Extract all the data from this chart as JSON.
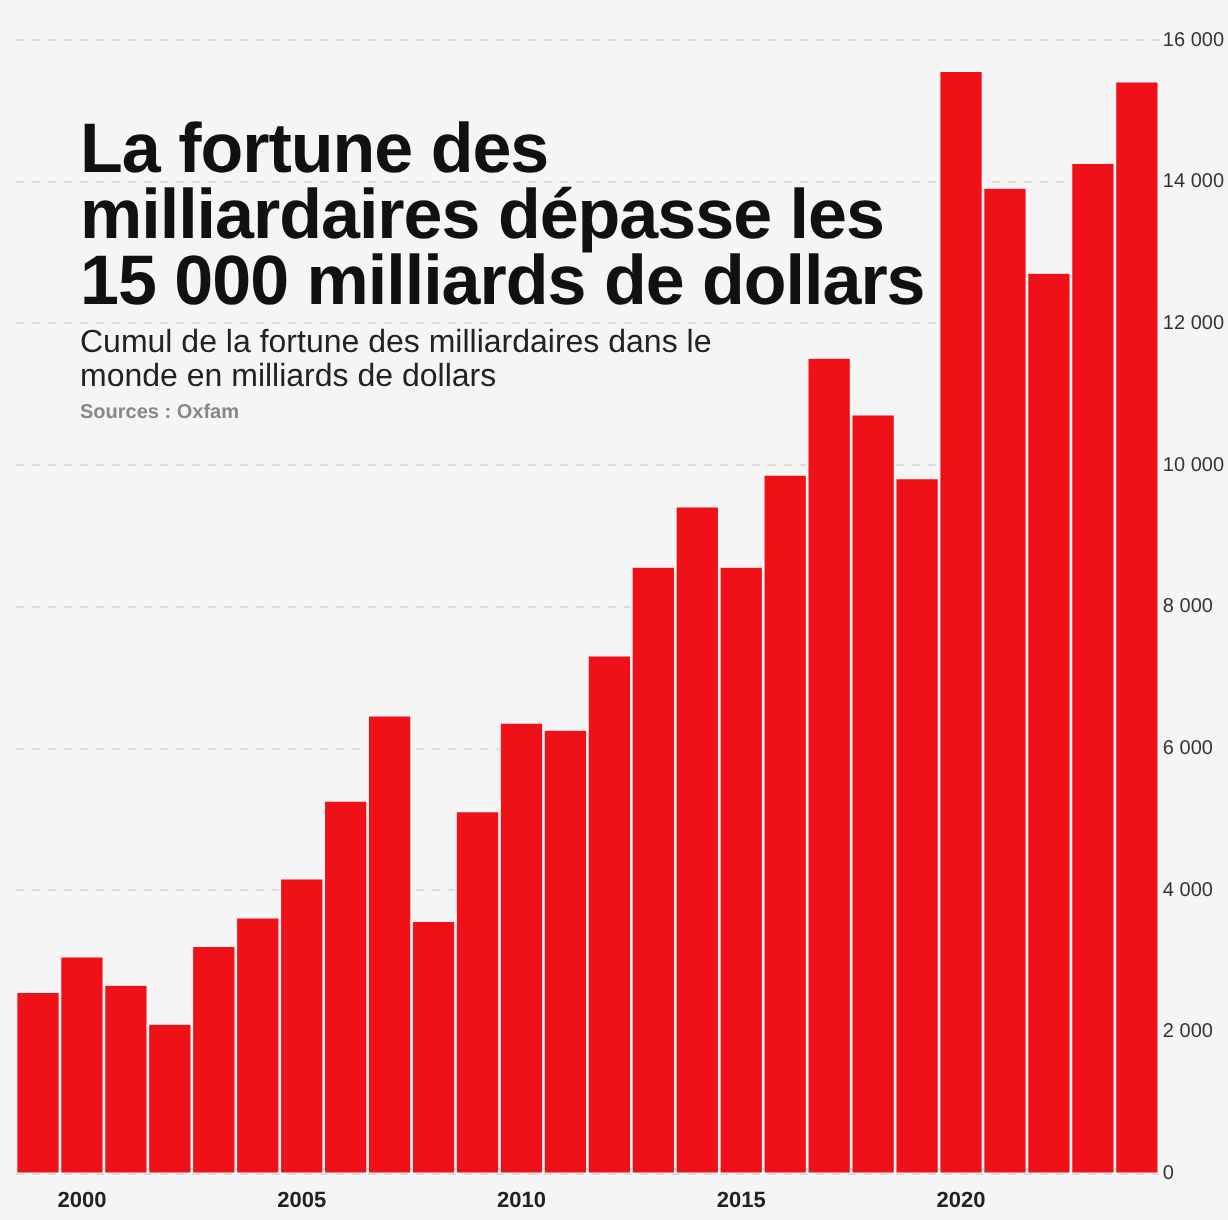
{
  "chart_data": {
    "type": "bar",
    "title": "La fortune des milliardaires dépasse les 15 000 milliards de dollars",
    "subtitle": "Cumul de la fortune des milliardaires dans le monde en milliards de dollars",
    "annotations": [
      "Sources : Oxfam"
    ],
    "categories": [
      null,
      "2000",
      null,
      null,
      null,
      null,
      "2005",
      null,
      null,
      null,
      null,
      "2010",
      null,
      null,
      null,
      null,
      "2015",
      null,
      null,
      null,
      null,
      "2020",
      null,
      null,
      null,
      null
    ],
    "values": [
      2550,
      3050,
      2650,
      2100,
      3200,
      3600,
      4150,
      5250,
      6450,
      3550,
      5100,
      6350,
      6250,
      7300,
      8550,
      9400,
      8550,
      9850,
      11500,
      10700,
      9800,
      15550,
      13900,
      12700,
      14250,
      15400
    ],
    "color": "#f01018",
    "ylim": [
      0,
      16000
    ],
    "yticks": [
      {
        "value": 0,
        "label": "0"
      },
      {
        "value": 2000,
        "label": "2 000"
      },
      {
        "value": 4000,
        "label": "4 000"
      },
      {
        "value": 6000,
        "label": "6 000"
      },
      {
        "value": 8000,
        "label": "8 000"
      },
      {
        "value": 10000,
        "label": "10 000"
      },
      {
        "value": 12000,
        "label": "12 000"
      },
      {
        "value": 14000,
        "label": "14 000"
      },
      {
        "value": 16000,
        "label": "16 000"
      }
    ],
    "grid": "y"
  }
}
